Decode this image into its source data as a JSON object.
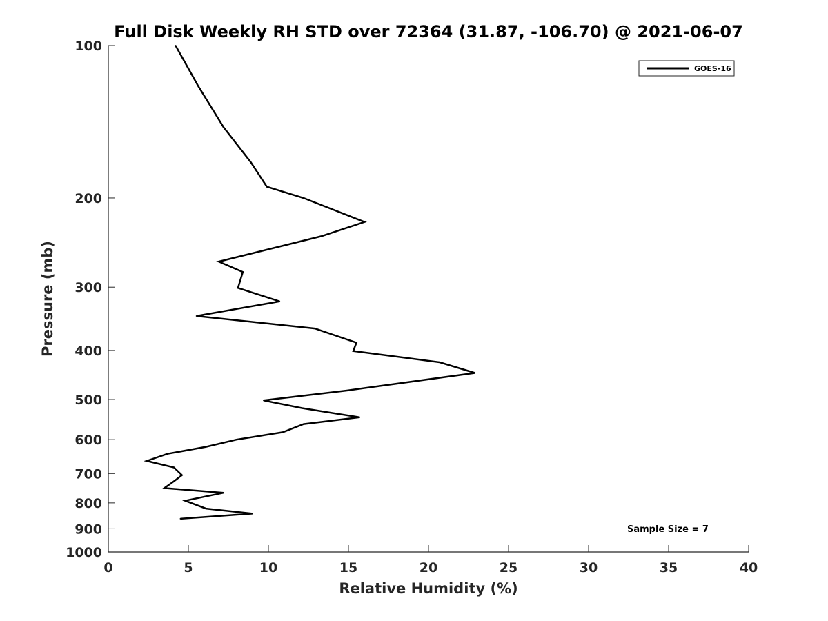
{
  "chart_data": {
    "type": "line",
    "title": "Full Disk Weekly RH STD over 72364 (31.87, -106.70) @ 2021-06-07",
    "xlabel": "Relative Humidity (%)",
    "ylabel": "Pressure (mb)",
    "xlim": [
      0,
      40
    ],
    "ylim": [
      1000,
      100
    ],
    "y_scale": "log",
    "y_reversed": true,
    "x_ticks": [
      0,
      5,
      10,
      15,
      20,
      25,
      30,
      35,
      40
    ],
    "x_tick_labels": [
      "0",
      "5",
      "10",
      "15",
      "20",
      "25",
      "30",
      "35",
      "40"
    ],
    "y_ticks": [
      100,
      200,
      300,
      400,
      500,
      600,
      700,
      800,
      900,
      1000
    ],
    "y_tick_labels": [
      "100",
      "200",
      "300",
      "400",
      "500",
      "600",
      "700",
      "800",
      "900",
      "1000"
    ],
    "grid": false,
    "legend_position": "top-right",
    "series": [
      {
        "name": "GOES-16",
        "color": "#000000",
        "points": [
          {
            "x": 4.2,
            "p": 100
          },
          {
            "x": 5.6,
            "p": 120
          },
          {
            "x": 7.2,
            "p": 145
          },
          {
            "x": 8.9,
            "p": 170
          },
          {
            "x": 9.9,
            "p": 190
          },
          {
            "x": 12.2,
            "p": 200
          },
          {
            "x": 16.0,
            "p": 223
          },
          {
            "x": 13.3,
            "p": 238
          },
          {
            "x": 6.9,
            "p": 267
          },
          {
            "x": 8.4,
            "p": 280
          },
          {
            "x": 8.1,
            "p": 301
          },
          {
            "x": 10.7,
            "p": 320
          },
          {
            "x": 5.5,
            "p": 342
          },
          {
            "x": 12.9,
            "p": 362
          },
          {
            "x": 15.5,
            "p": 386
          },
          {
            "x": 15.3,
            "p": 401
          },
          {
            "x": 20.7,
            "p": 422
          },
          {
            "x": 22.9,
            "p": 443
          },
          {
            "x": 14.9,
            "p": 480
          },
          {
            "x": 9.7,
            "p": 502
          },
          {
            "x": 12.1,
            "p": 520
          },
          {
            "x": 15.7,
            "p": 542
          },
          {
            "x": 12.2,
            "p": 559
          },
          {
            "x": 10.9,
            "p": 580
          },
          {
            "x": 8.0,
            "p": 600
          },
          {
            "x": 6.1,
            "p": 620
          },
          {
            "x": 3.7,
            "p": 640
          },
          {
            "x": 2.4,
            "p": 661
          },
          {
            "x": 4.1,
            "p": 681
          },
          {
            "x": 4.6,
            "p": 705
          },
          {
            "x": 4.1,
            "p": 725
          },
          {
            "x": 3.5,
            "p": 748
          },
          {
            "x": 7.2,
            "p": 764
          },
          {
            "x": 4.8,
            "p": 792
          },
          {
            "x": 6.1,
            "p": 821
          },
          {
            "x": 9.0,
            "p": 840
          },
          {
            "x": 4.5,
            "p": 860
          }
        ]
      }
    ],
    "annotations": [
      "Sample Size = 7"
    ]
  }
}
